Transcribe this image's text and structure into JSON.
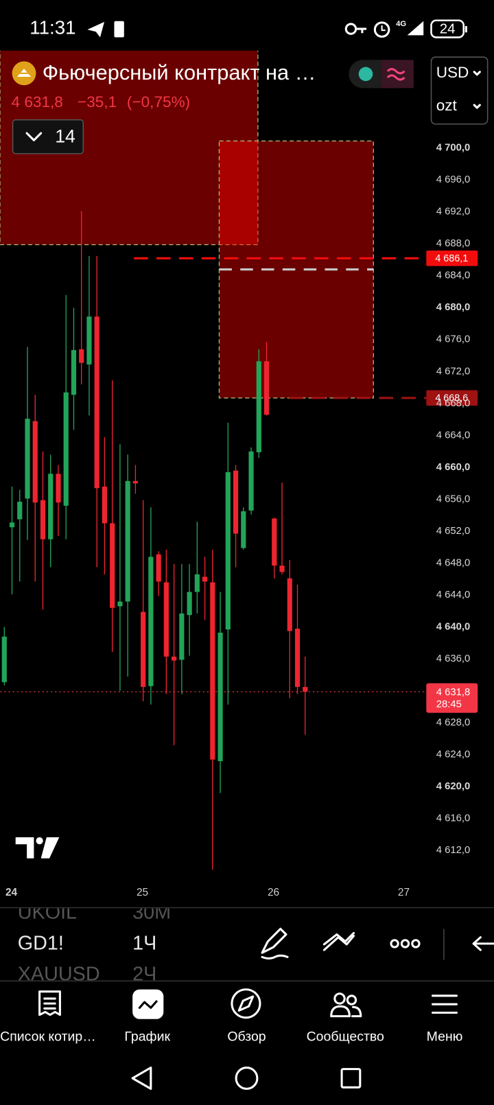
{
  "status_bar": {
    "time": "11:31",
    "network": "4G",
    "battery": "24"
  },
  "header": {
    "title": "Фьючерсный контракт на …",
    "price": "4 631,8",
    "change": "−35,1",
    "change_pct": "(−0,75%)",
    "indicators_count": "14",
    "currency": "USD",
    "unit": "ozt"
  },
  "chart_data": {
    "type": "candlestick",
    "x_labels": [
      "24",
      "25",
      "26",
      "27"
    ],
    "candles": {
      "open": [
        4633.0,
        4652.4,
        4653.4,
        4656.0,
        4665.7,
        4655.8,
        4650.9,
        4659.1,
        4655.1,
        4669.0,
        4674.7,
        4672.8,
        4678.8,
        4657.5,
        4652.9,
        4642.5,
        4643.1,
        4658.2,
        4641.8,
        4632.5,
        4649.0,
        4645.5,
        4636.2,
        4635.8,
        4641.4,
        4644.3,
        4646.2,
        4645.5,
        4623.1,
        4639.6,
        4659.5,
        4649.8,
        4654.5,
        4661.8,
        4673.2,
        4653.5,
        4647.6,
        4646.0,
        4639.7,
        4632.4
      ],
      "high": [
        4639.9,
        4657.5,
        4657.1,
        4675.0,
        4669.0,
        4661.9,
        4661.5,
        4660.2,
        4681.5,
        4679.9,
        4692.0,
        4686.4,
        4686.4,
        4663.7,
        4670.8,
        4662.8,
        4661.5,
        4660.2,
        4655.8,
        4654.9,
        4649.4,
        4649.6,
        4647.8,
        4647.8,
        4647.8,
        4653.1,
        4648.7,
        4649.6,
        4644.3,
        4665.5,
        4660.2,
        4654.9,
        4662.4,
        4674.7,
        4675.6,
        4653.6,
        4658.0,
        4648.3,
        4645.2,
        4636.2
      ],
      "low": [
        4632.6,
        4644.0,
        4645.6,
        4650.8,
        4645.6,
        4642.1,
        4647.4,
        4651.3,
        4650.9,
        4664.6,
        4670.3,
        4666.4,
        4647.4,
        4646.5,
        4636.8,
        4631.9,
        4633.7,
        4656.6,
        4630.6,
        4630.2,
        4643.8,
        4631.5,
        4625.1,
        4631.5,
        4636.3,
        4641.6,
        4640.8,
        4609.5,
        4619.1,
        4630.2,
        4647.4,
        4649.6,
        4654.0,
        4661.1,
        4666.4,
        4646.0,
        4646.5,
        4631.0,
        4631.5,
        4626.4
      ],
      "close": [
        4638.7,
        4653.0,
        4655.6,
        4666.0,
        4655.5,
        4650.9,
        4659.1,
        4655.5,
        4669.3,
        4674.6,
        4673.0,
        4678.8,
        4657.3,
        4652.9,
        4642.3,
        4643.1,
        4658.2,
        4657.9,
        4632.4,
        4648.7,
        4645.6,
        4636.2,
        4635.7,
        4641.6,
        4644.3,
        4646.5,
        4645.6,
        4623.3,
        4639.2,
        4659.3,
        4651.6,
        4654.4,
        4661.9,
        4673.2,
        4666.5,
        4647.6,
        4646.8,
        4639.4,
        4632.4,
        4631.8
      ]
    },
    "up_color": "#22a559",
    "down_color": "#ee2530",
    "ylim": [
      4608.1,
      4712.1
    ],
    "yticks": [
      {
        "value": 4700,
        "label": "4 700,0"
      },
      {
        "value": 4696,
        "label": "4 696,0"
      },
      {
        "value": 4692,
        "label": "4 692,0"
      },
      {
        "value": 4688,
        "label": "4 688,0"
      },
      {
        "value": 4684,
        "label": "4 684,0"
      },
      {
        "value": 4680,
        "label": "4 680,0"
      },
      {
        "value": 4676,
        "label": "4 676,0"
      },
      {
        "value": 4672,
        "label": "4 672,0"
      },
      {
        "value": 4668,
        "label": "4 668,0"
      },
      {
        "value": 4664,
        "label": "4 664,0"
      },
      {
        "value": 4660,
        "label": "4 660,0"
      },
      {
        "value": 4656,
        "label": "4 656,0"
      },
      {
        "value": 4652,
        "label": "4 652,0"
      },
      {
        "value": 4648,
        "label": "4 648,0"
      },
      {
        "value": 4644,
        "label": "4 644,0"
      },
      {
        "value": 4640,
        "label": "4 640,0"
      },
      {
        "value": 4636,
        "label": "4 636,0"
      },
      {
        "value": 4632,
        "label": "4 632,0"
      },
      {
        "value": 4628,
        "label": "4 628,0"
      },
      {
        "value": 4624,
        "label": "4 624,0"
      },
      {
        "value": 4620,
        "label": "4 620,0"
      },
      {
        "value": 4616,
        "label": "4 616,0"
      },
      {
        "value": 4612,
        "label": "4 612,0"
      }
    ],
    "zones": [
      {
        "top": 4715.5,
        "bottom": 4687.8
      },
      {
        "top": 4700.8,
        "bottom": 4668.6
      }
    ],
    "levels": [
      {
        "value": 4686.1,
        "label": "4 686,1",
        "color": "#f20d0d"
      },
      {
        "value": 4668.6,
        "label": "4 668,6",
        "color": "#9e1212"
      }
    ],
    "last": {
      "value": 4631.8,
      "label": "4 631,8",
      "countdown": "28:45",
      "color": "#f23645"
    }
  },
  "toolbar": {
    "symbols": [
      "UKOIL",
      "GD1!",
      "XAUUSD"
    ],
    "intervals": [
      "30М",
      "1Ч",
      "2Ч"
    ]
  },
  "nav": [
    "Список котир…",
    "График",
    "Обзор",
    "Сообщество",
    "Меню"
  ]
}
